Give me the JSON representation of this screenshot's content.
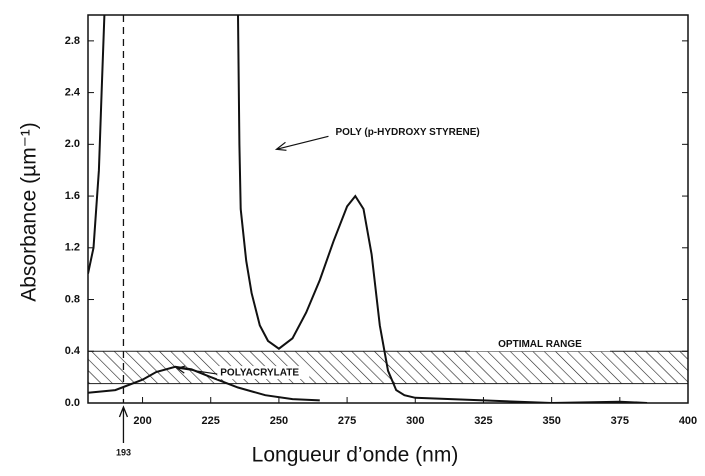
{
  "chart_data": {
    "type": "line",
    "xlabel": "Longueur d’onde (nm)",
    "ylabel": "Absorbance (µm⁻¹)",
    "xlim": [
      180,
      400
    ],
    "xticks": [
      200,
      225,
      250,
      275,
      300,
      325,
      350,
      375,
      400
    ],
    "ylim": [
      0,
      3.0
    ],
    "yticks": [
      {
        "value": 0,
        "label": "0.0"
      },
      0.4,
      0.8,
      1.2,
      1.6,
      {
        "value": 2,
        "label": "2.0"
      },
      2.4,
      2.8
    ],
    "series": [
      {
        "color": "#111111",
        "x": [
          180,
          182,
          184,
          185,
          186,
          210,
          235,
          235.5,
          236,
          238,
          240,
          243,
          246,
          250,
          255,
          260,
          265,
          270,
          275,
          278,
          281,
          284,
          287,
          290,
          293,
          296,
          300,
          325,
          350,
          375,
          385
        ],
        "values": [
          1.0,
          1.2,
          1.8,
          2.4,
          3.0,
          null,
          3.0,
          2.0,
          1.5,
          1.1,
          0.85,
          0.6,
          0.48,
          0.42,
          0.5,
          0.7,
          0.95,
          1.25,
          1.52,
          1.6,
          1.5,
          1.15,
          0.6,
          0.25,
          0.1,
          0.06,
          0.04,
          0.02,
          0.0,
          0.01,
          0.0
        ]
      },
      {
        "color": "#111111",
        "x": [
          180,
          190,
          200,
          205,
          212,
          218,
          225,
          235,
          245,
          255,
          265
        ],
        "values": [
          0.08,
          0.1,
          0.18,
          0.24,
          0.28,
          0.26,
          0.2,
          0.12,
          0.06,
          0.03,
          0.02
        ]
      }
    ],
    "band": {
      "label": "OPTIMAL RANGE",
      "range": [
        0.15,
        0.4
      ]
    },
    "annotations": [
      {
        "text": "POLY (p-HYDROXY STYRENE)",
        "x": 248,
        "y": 2.0
      },
      {
        "text": "POLYACRYLATE",
        "x": 212,
        "y": 0.27
      }
    ],
    "vline": {
      "x": 193,
      "label": "193"
    }
  }
}
